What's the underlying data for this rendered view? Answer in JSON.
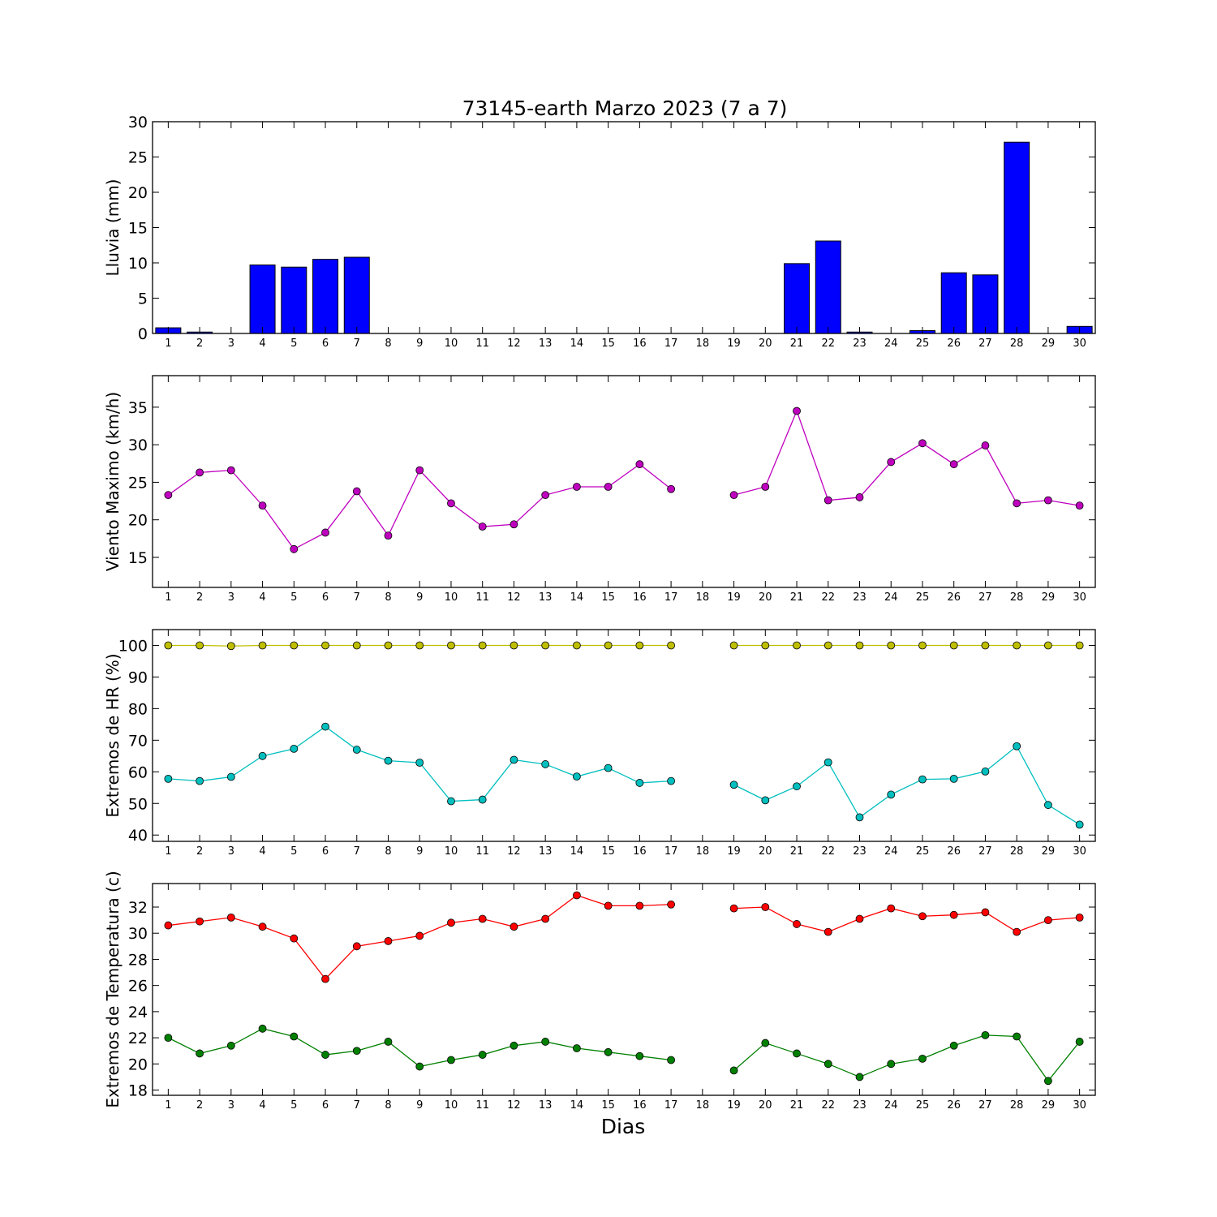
{
  "title": "73145-earth Marzo 2023  (7 a 7)",
  "xlabel": "Dias",
  "chart_data": [
    {
      "type": "bar",
      "ylabel": "Lluvia (mm)",
      "x": [
        1,
        2,
        3,
        4,
        5,
        6,
        7,
        8,
        9,
        10,
        11,
        12,
        13,
        14,
        15,
        16,
        17,
        18,
        19,
        20,
        21,
        22,
        23,
        24,
        25,
        26,
        27,
        28,
        29,
        30
      ],
      "xlim": [
        0.5,
        30.5
      ],
      "ylim": [
        0,
        30
      ],
      "yticks": [
        0,
        5,
        10,
        15,
        20,
        25,
        30
      ],
      "series": [
        {
          "color": "#0000ff",
          "values": [
            0.8,
            0.2,
            0,
            9.7,
            9.4,
            10.5,
            10.8,
            0,
            0,
            0,
            0,
            0,
            0,
            0,
            0,
            0,
            0,
            0,
            0,
            0,
            9.9,
            13.1,
            0.2,
            0,
            0.4,
            8.6,
            8.3,
            27.1,
            0,
            1.0
          ]
        }
      ]
    },
    {
      "type": "line",
      "ylabel": "Viento Maximo (km/h)",
      "x": [
        1,
        2,
        3,
        4,
        5,
        6,
        7,
        8,
        9,
        10,
        11,
        12,
        13,
        14,
        15,
        16,
        17,
        18,
        19,
        20,
        21,
        22,
        23,
        24,
        25,
        26,
        27,
        28,
        29,
        30
      ],
      "xlim": [
        0.5,
        30.5
      ],
      "ylim": [
        11,
        39.2
      ],
      "yticks": [
        15,
        20,
        25,
        30,
        35
      ],
      "series": [
        {
          "color": "#bf00bf",
          "values": [
            23.3,
            26.3,
            26.6,
            21.9,
            16.1,
            18.3,
            23.8,
            17.9,
            26.6,
            22.2,
            19.1,
            19.4,
            23.3,
            24.4,
            24.4,
            27.4,
            24.1,
            null,
            23.3,
            24.4,
            34.5,
            22.6,
            23.0,
            27.7,
            30.2,
            27.4,
            29.9,
            22.2,
            22.6,
            21.9
          ]
        }
      ]
    },
    {
      "type": "line",
      "ylabel": "Extremos de HR (%)",
      "x": [
        1,
        2,
        3,
        4,
        5,
        6,
        7,
        8,
        9,
        10,
        11,
        12,
        13,
        14,
        15,
        16,
        17,
        18,
        19,
        20,
        21,
        22,
        23,
        24,
        25,
        26,
        27,
        28,
        29,
        30
      ],
      "xlim": [
        0.5,
        30.5
      ],
      "ylim": [
        38,
        105
      ],
      "yticks": [
        40,
        50,
        60,
        70,
        80,
        90,
        100
      ],
      "series": [
        {
          "color": "#bfbf00",
          "values": [
            100,
            100,
            99.8,
            100,
            100,
            100,
            100,
            100,
            100,
            100,
            100,
            100,
            100,
            100,
            100,
            100,
            100,
            null,
            100,
            100,
            100,
            100,
            100,
            100,
            100,
            100,
            100,
            100,
            100,
            100
          ]
        },
        {
          "color": "#00bfbf",
          "values": [
            57.8,
            57.1,
            58.4,
            65.0,
            67.3,
            74.3,
            67.0,
            63.5,
            62.9,
            50.7,
            51.2,
            63.8,
            62.4,
            58.5,
            61.2,
            56.5,
            57.1,
            null,
            55.9,
            51.0,
            55.4,
            63.0,
            45.6,
            52.8,
            57.6,
            57.8,
            60.1,
            68.1,
            49.5,
            43.3
          ]
        }
      ]
    },
    {
      "type": "line",
      "ylabel": "Extremos de Temperatura (c)",
      "x": [
        1,
        2,
        3,
        4,
        5,
        6,
        7,
        8,
        9,
        10,
        11,
        12,
        13,
        14,
        15,
        16,
        17,
        18,
        19,
        20,
        21,
        22,
        23,
        24,
        25,
        26,
        27,
        28,
        29,
        30
      ],
      "xlim": [
        0.5,
        30.5
      ],
      "ylim": [
        17.6,
        33.8
      ],
      "yticks": [
        18,
        20,
        22,
        24,
        26,
        28,
        30,
        32
      ],
      "series": [
        {
          "color": "#ff0000",
          "values": [
            30.6,
            30.9,
            31.2,
            30.5,
            29.6,
            26.5,
            29.0,
            29.4,
            29.8,
            30.8,
            31.1,
            30.5,
            31.1,
            32.9,
            32.1,
            32.1,
            32.2,
            null,
            31.9,
            32.0,
            30.7,
            30.1,
            31.1,
            31.9,
            31.3,
            31.4,
            31.6,
            30.1,
            31.0,
            31.2
          ]
        },
        {
          "color": "#008000",
          "values": [
            22.0,
            20.8,
            21.4,
            22.7,
            22.1,
            20.7,
            21.0,
            21.7,
            19.8,
            20.3,
            20.7,
            21.4,
            21.7,
            21.2,
            20.9,
            20.6,
            20.3,
            null,
            19.5,
            21.6,
            20.8,
            20.0,
            19.0,
            20.0,
            20.4,
            21.4,
            22.2,
            22.1,
            18.7,
            21.7
          ]
        }
      ]
    }
  ]
}
